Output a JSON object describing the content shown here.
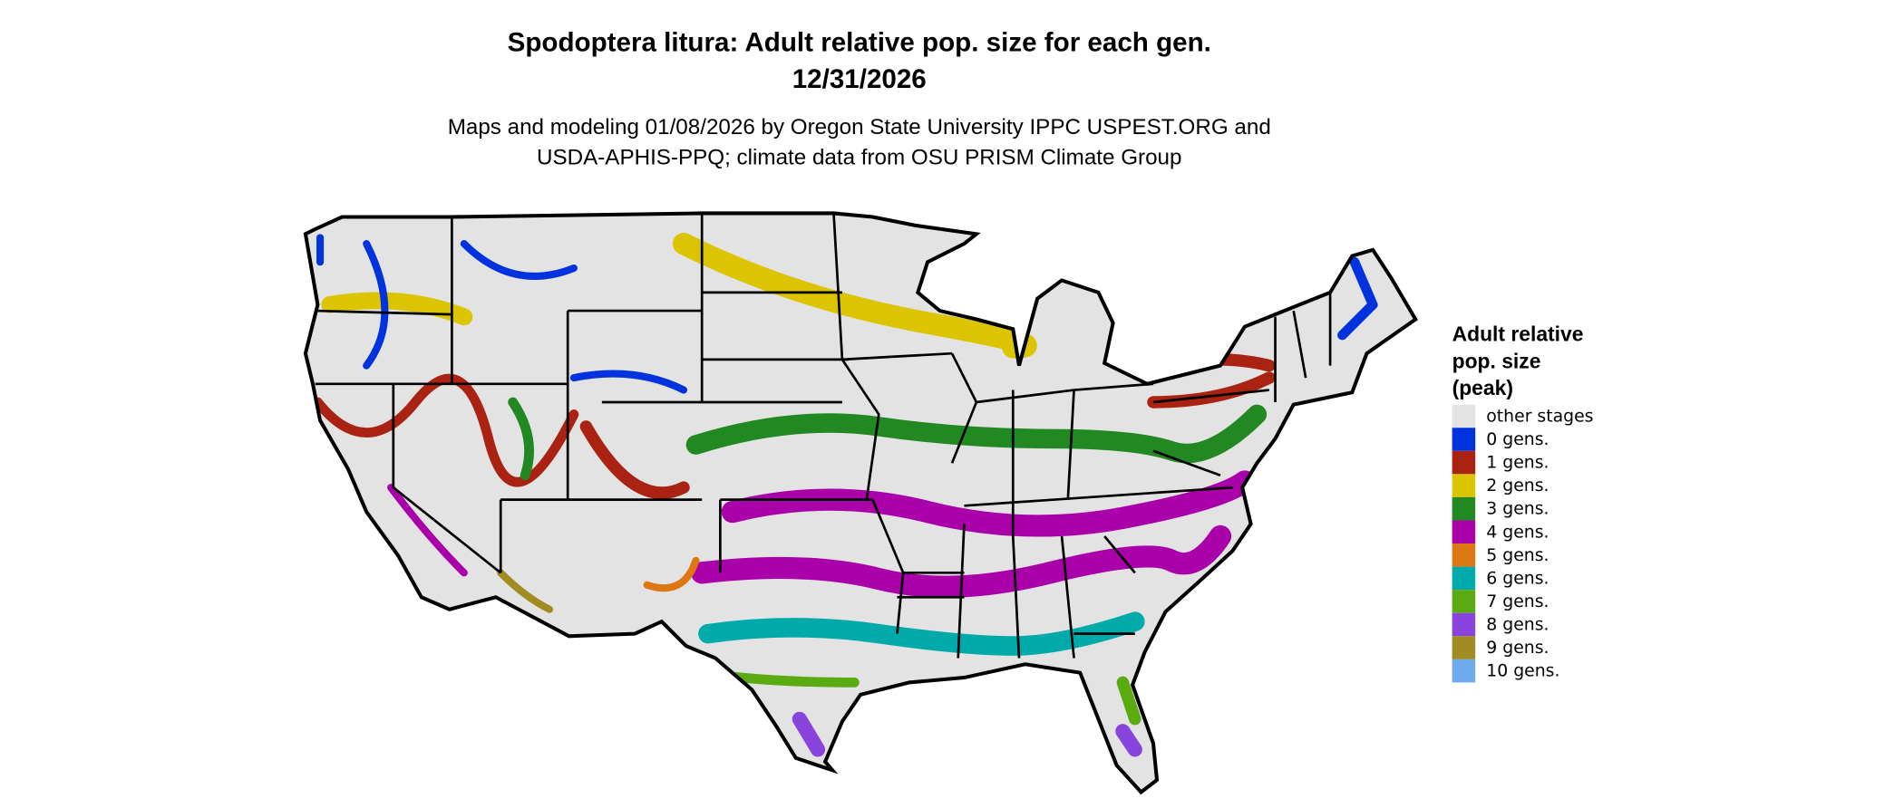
{
  "title": "Spodoptera litura: Adult relative pop. size for each gen.",
  "date": "12/31/2026",
  "subtitle_line1": "Maps and modeling 01/08/2026 by Oregon State University IPPC USPEST.ORG and",
  "subtitle_line2": "USDA-APHIS-PPQ; climate data from OSU PRISM Climate Group",
  "legend": {
    "title_lines": [
      "Adult relative",
      "pop. size",
      "(peak)"
    ],
    "items": [
      {
        "label": "other stages",
        "color": "#e3e3e3"
      },
      {
        "label": "0 gens.",
        "color": "#0033dd"
      },
      {
        "label": "1 gens.",
        "color": "#aa2211"
      },
      {
        "label": "2 gens.",
        "color": "#dcc400"
      },
      {
        "label": "3 gens.",
        "color": "#228822"
      },
      {
        "label": "4 gens.",
        "color": "#aa00aa"
      },
      {
        "label": "5 gens.",
        "color": "#dd7711"
      },
      {
        "label": "6 gens.",
        "color": "#00aaaa"
      },
      {
        "label": "7 gens.",
        "color": "#5aaa11"
      },
      {
        "label": "8 gens.",
        "color": "#8844dd"
      },
      {
        "label": "9 gens.",
        "color": "#a08c22"
      },
      {
        "label": "10 gens.",
        "color": "#6faaee"
      }
    ]
  }
}
